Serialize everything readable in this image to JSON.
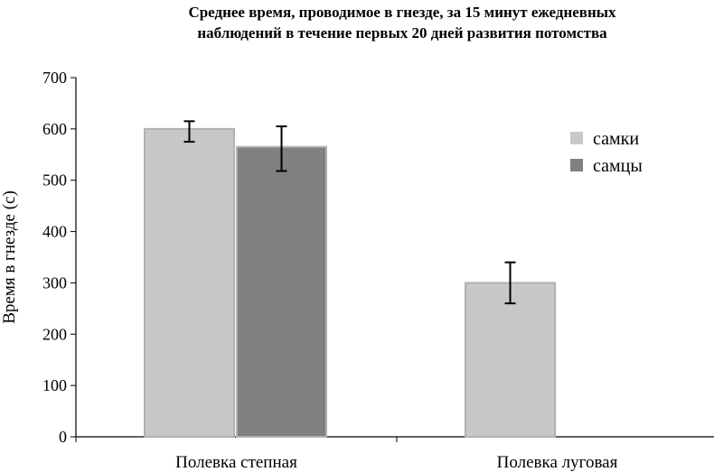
{
  "chart_data": {
    "type": "bar",
    "title_lines": [
      "Среднее время, проводимое в гнезде, за 15 минут ежедневных",
      "наблюдений в течение первых 20 дней развития потомства"
    ],
    "ylabel": "Время в гнезде (с)",
    "xlabel": "",
    "ylim": [
      0,
      700
    ],
    "yticks": [
      0,
      100,
      200,
      300,
      400,
      500,
      600,
      700
    ],
    "categories": [
      "Полевка степная",
      "Полевка луговая"
    ],
    "series": [
      {
        "name": "самки",
        "color": "#c8c8c8",
        "values": [
          600,
          300
        ],
        "err_low": [
          575,
          260
        ],
        "err_high": [
          615,
          340
        ]
      },
      {
        "name": "самцы",
        "color": "#808080",
        "values": [
          565,
          null
        ],
        "err_low": [
          518,
          null
        ],
        "err_high": [
          605,
          null
        ]
      }
    ],
    "legend_position": "right",
    "grid": false
  }
}
